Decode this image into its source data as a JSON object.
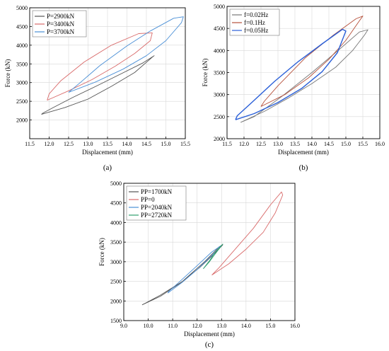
{
  "chart_data": [
    {
      "type": "line",
      "panel_label": "(a)",
      "xlabel": "Displacement (mm)",
      "ylabel": "Force (kN)",
      "xlim": [
        11.5,
        15.5
      ],
      "ylim": [
        1500,
        5000
      ],
      "xticks": [
        "11.5",
        "12.0",
        "12.5",
        "13.0",
        "13.5",
        "14.0",
        "14.5",
        "15.0",
        "15.5"
      ],
      "yticks": [
        "2000",
        "2500",
        "3000",
        "3500",
        "4000",
        "4500",
        "5000"
      ],
      "grid": true,
      "legend_position": "top-left",
      "series": [
        {
          "name": "P=2900kN",
          "color": "#555555",
          "x": [
            11.8,
            12.4,
            13.0,
            13.6,
            14.2,
            14.65,
            14.7,
            14.4,
            13.8,
            13.2,
            12.6,
            12.1,
            11.85,
            11.8
          ],
          "y": [
            2150,
            2330,
            2560,
            2900,
            3270,
            3680,
            3720,
            3520,
            3210,
            2900,
            2600,
            2330,
            2190,
            2150
          ]
        },
        {
          "name": "P=3400kN",
          "color": "#d96b6b",
          "x": [
            11.95,
            12.5,
            13.1,
            13.7,
            14.2,
            14.6,
            14.65,
            14.3,
            13.6,
            12.9,
            12.3,
            12.0,
            11.95
          ],
          "y": [
            2530,
            2780,
            3080,
            3440,
            3780,
            4120,
            4330,
            4310,
            4000,
            3550,
            3050,
            2700,
            2530
          ]
        },
        {
          "name": "P=3700kN",
          "color": "#4a8fd6",
          "x": [
            12.5,
            13.2,
            13.9,
            14.5,
            15.0,
            15.4,
            15.45,
            15.2,
            14.6,
            14.0,
            13.3,
            12.8,
            12.5
          ],
          "y": [
            2740,
            3020,
            3360,
            3720,
            4120,
            4600,
            4760,
            4720,
            4380,
            3980,
            3450,
            3000,
            2740
          ]
        }
      ]
    },
    {
      "type": "line",
      "panel_label": "(b)",
      "xlabel": "Displacement (mm)",
      "ylabel": "Force (kN)",
      "xlim": [
        11.5,
        16.0
      ],
      "ylim": [
        2000,
        5000
      ],
      "xticks": [
        "11.5",
        "12.0",
        "12.5",
        "13.0",
        "13.5",
        "14.0",
        "14.5",
        "15.0",
        "15.5",
        "16.0"
      ],
      "yticks": [
        "2000",
        "2500",
        "3000",
        "3500",
        "4000",
        "4500",
        "5000"
      ],
      "grid": true,
      "legend_position": "top-left",
      "series": [
        {
          "name": "f=0.02Hz",
          "color": "#777777",
          "x": [
            11.9,
            12.6,
            13.3,
            14.0,
            14.7,
            15.2,
            15.55,
            15.65,
            15.4,
            14.8,
            14.0,
            13.1,
            12.3,
            11.9
          ],
          "y": [
            2370,
            2620,
            2920,
            3250,
            3620,
            4000,
            4350,
            4470,
            4420,
            4020,
            3500,
            2950,
            2500,
            2370
          ]
        },
        {
          "name": "f=0.1Hz",
          "color": "#b5503a",
          "x": [
            12.5,
            13.2,
            13.9,
            14.5,
            15.0,
            15.35,
            15.5,
            15.3,
            14.6,
            13.8,
            13.0,
            12.6,
            12.5
          ],
          "y": [
            2730,
            3000,
            3380,
            3800,
            4230,
            4620,
            4780,
            4720,
            4330,
            3830,
            3200,
            2850,
            2730
          ]
        },
        {
          "name": "f=0.05Hz",
          "color": "#2a5fd8",
          "x": [
            11.75,
            12.3,
            13.0,
            13.7,
            14.3,
            14.75,
            15.0,
            14.9,
            14.3,
            13.6,
            12.9,
            12.2,
            11.8,
            11.75
          ],
          "y": [
            2430,
            2570,
            2820,
            3140,
            3520,
            3950,
            4440,
            4480,
            4150,
            3750,
            3300,
            2800,
            2520,
            2430
          ]
        }
      ]
    },
    {
      "type": "line",
      "panel_label": "(c)",
      "xlabel": "Displacement (mm)",
      "ylabel": "Force (kN)",
      "xlim": [
        9.0,
        16.0
      ],
      "ylim": [
        1500,
        5000
      ],
      "xticks": [
        "9.0",
        "10.0",
        "11.0",
        "12.0",
        "13.0",
        "14.0",
        "15.0",
        "16.0"
      ],
      "yticks": [
        "1500",
        "2000",
        "2500",
        "3000",
        "3500",
        "4000",
        "4500",
        "5000"
      ],
      "grid": true,
      "legend_position": "top-left",
      "series": [
        {
          "name": "PP=1700kN",
          "color": "#555555",
          "x": [
            9.75,
            10.5,
            11.3,
            12.1,
            12.7,
            13.05,
            12.9,
            12.3,
            11.4,
            10.5,
            9.9,
            9.75
          ],
          "y": [
            1900,
            2120,
            2450,
            2850,
            3200,
            3430,
            3380,
            3000,
            2500,
            2150,
            1950,
            1900
          ]
        },
        {
          "name": "PP=0",
          "color": "#d96b6b",
          "x": [
            12.6,
            13.3,
            14.0,
            14.7,
            15.2,
            15.5,
            15.45,
            15.0,
            14.3,
            13.5,
            12.9,
            12.6
          ],
          "y": [
            2660,
            2950,
            3320,
            3750,
            4250,
            4700,
            4780,
            4450,
            3850,
            3280,
            2850,
            2660
          ]
        },
        {
          "name": "PP=2040kN",
          "color": "#4a8fd6",
          "x": [
            10.8,
            11.4,
            12.0,
            12.5,
            12.9,
            13.0,
            12.6,
            12.0,
            11.3,
            10.85,
            10.8
          ],
          "y": [
            2200,
            2480,
            2800,
            3100,
            3350,
            3420,
            3250,
            2900,
            2500,
            2250,
            2200
          ]
        },
        {
          "name": "PP=2720kN",
          "color": "#2e9e6e",
          "x": [
            12.25,
            12.5,
            12.75,
            13.0,
            13.05,
            12.8,
            12.5,
            12.25
          ],
          "y": [
            2820,
            3020,
            3250,
            3420,
            3450,
            3250,
            3000,
            2820
          ]
        }
      ]
    }
  ]
}
